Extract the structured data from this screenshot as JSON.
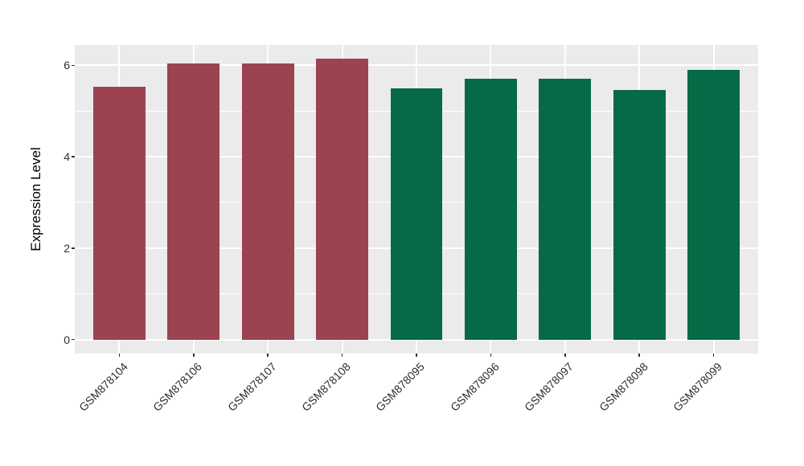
{
  "figure": {
    "background": "#FFFFFF",
    "panel_background": "#EBEBEB",
    "grid_color": "#FFFFFF",
    "axis_text_color": "#2E2E2E",
    "axis_title_color": "#000000",
    "tick_mark_color": "#333333"
  },
  "chart_data": {
    "type": "bar",
    "title": "",
    "xlabel": "",
    "ylabel": "Expression Level",
    "categories": [
      "GSM878104",
      "GSM878106",
      "GSM878107",
      "GSM878108",
      "GSM878095",
      "GSM878096",
      "GSM878097",
      "GSM878098",
      "GSM878099"
    ],
    "values": [
      5.53,
      6.05,
      6.05,
      6.14,
      5.5,
      5.7,
      5.7,
      5.46,
      5.9
    ],
    "bar_colors": [
      "#9B4351",
      "#9B4351",
      "#9B4351",
      "#9B4351",
      "#066A47",
      "#066A47",
      "#066A47",
      "#066A47",
      "#066A47"
    ],
    "groups": [
      {
        "color": "#9B4351",
        "categories": [
          "GSM878104",
          "GSM878106",
          "GSM878107",
          "GSM878108"
        ]
      },
      {
        "color": "#066A47",
        "categories": [
          "GSM878095",
          "GSM878096",
          "GSM878097",
          "GSM878098",
          "GSM878099"
        ]
      }
    ],
    "y_ticks": [
      "0",
      "2",
      "4",
      "6"
    ],
    "y_tick_values": [
      0,
      2,
      4,
      6
    ],
    "y_minor_tick_values": [
      1,
      3,
      5
    ],
    "ylim": [
      0,
      6.14
    ],
    "x_label_rotation_deg": 45,
    "grid": "major-and-minor, white on gray panel",
    "legend_position": "none",
    "bar_width_fraction": 0.7
  }
}
